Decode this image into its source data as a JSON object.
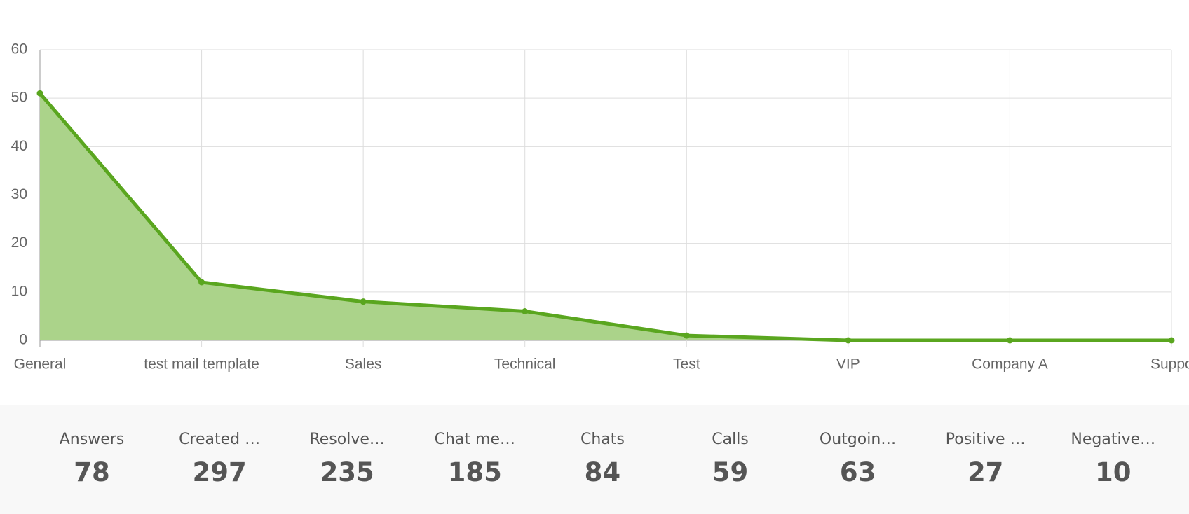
{
  "chart_data": {
    "type": "area",
    "categories": [
      "General",
      "test mail template",
      "Sales",
      "Technical",
      "Test",
      "VIP",
      "Company A",
      "Suppo"
    ],
    "values": [
      51,
      12,
      8,
      6,
      1,
      0,
      0,
      0
    ],
    "color": "#5aa61f",
    "fill": "#abd38a",
    "ylim": [
      0,
      60
    ],
    "yticks": [
      0,
      10,
      20,
      30,
      40,
      50,
      60
    ],
    "grid": true
  },
  "stats": [
    {
      "label": "Answers",
      "value": "78"
    },
    {
      "label": "Created …",
      "value": "297"
    },
    {
      "label": "Resolve…",
      "value": "235"
    },
    {
      "label": "Chat me…",
      "value": "185"
    },
    {
      "label": "Chats",
      "value": "84"
    },
    {
      "label": "Calls",
      "value": "59"
    },
    {
      "label": "Outgoin…",
      "value": "63"
    },
    {
      "label": "Positive …",
      "value": "27"
    },
    {
      "label": "Negative…",
      "value": "10"
    }
  ]
}
